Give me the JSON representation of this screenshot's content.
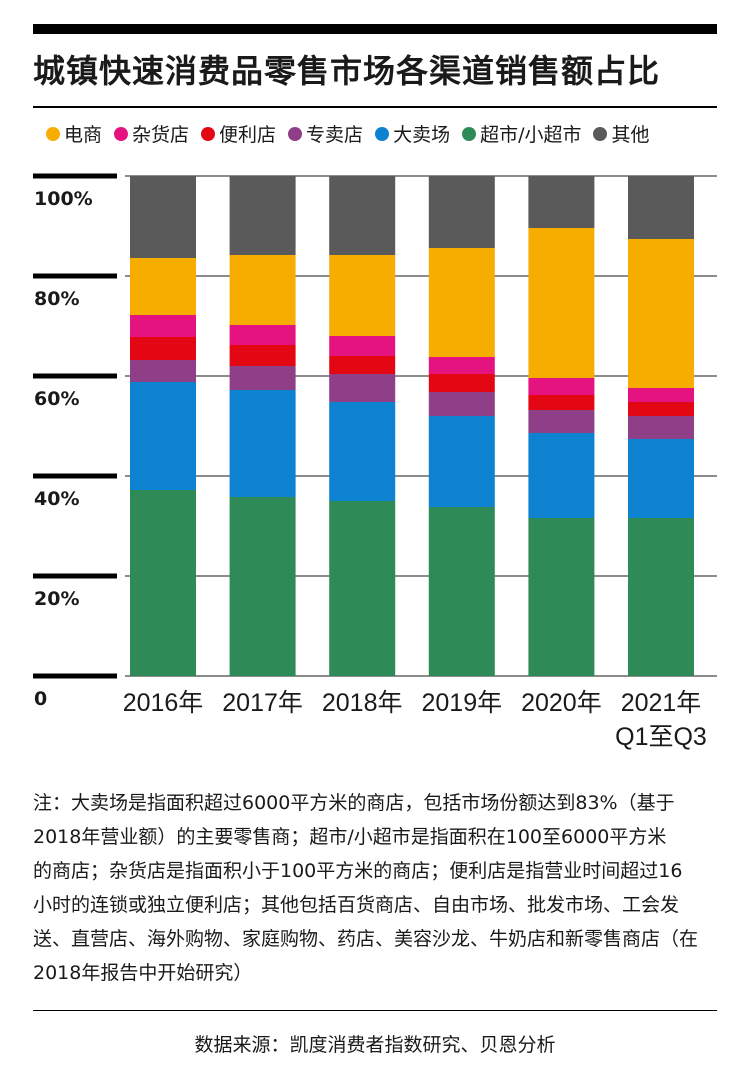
{
  "title": "城镇快速消费品零售市场各渠道销售额占比",
  "colors": {
    "电商": "#f6ad00",
    "杂货店": "#e5137f",
    "便利店": "#e30613",
    "专卖店": "#8e3f87",
    "大卖场": "#0d82d0",
    "超市/小超市": "#2e8b57",
    "其他": "#5a5a5a"
  },
  "legend": [
    "电商",
    "杂货店",
    "便利店",
    "专卖店",
    "大卖场",
    "超市/小超市",
    "其他"
  ],
  "chart_data": {
    "type": "bar",
    "stacked": true,
    "categories": [
      "2016年",
      "2017年",
      "2018年",
      "2019年",
      "2020年",
      "2021年\nQ1至Q3"
    ],
    "yticks": [
      "0",
      "20%",
      "40%",
      "60%",
      "80%",
      "100%"
    ],
    "ylim": [
      0,
      100
    ],
    "series": [
      {
        "name": "超市/小超市",
        "values": [
          37.2,
          35.8,
          35.0,
          33.8,
          31.6,
          31.6
        ]
      },
      {
        "name": "大卖场",
        "values": [
          21.6,
          21.4,
          19.8,
          18.2,
          17.0,
          15.8
        ]
      },
      {
        "name": "专卖店",
        "values": [
          4.4,
          4.8,
          5.6,
          4.8,
          4.6,
          4.6
        ]
      },
      {
        "name": "便利店",
        "values": [
          4.6,
          4.2,
          3.6,
          3.6,
          3.0,
          2.8
        ]
      },
      {
        "name": "杂货店",
        "values": [
          4.4,
          4.0,
          4.0,
          3.4,
          3.4,
          2.8
        ]
      },
      {
        "name": "电商",
        "values": [
          11.4,
          14.0,
          16.2,
          21.8,
          30.0,
          29.8
        ]
      },
      {
        "name": "其他",
        "values": [
          16.4,
          15.8,
          15.8,
          14.4,
          10.4,
          12.6
        ]
      }
    ]
  },
  "note_lines": [
    "注：大卖场是指面积超过6000平方米的商店，包括市场份额达到83%（基于",
    "2018年营业额）的主要零售商；超市/小超市是指面积在100至6000平方米",
    "的商店；杂货店是指面积小于100平方米的商店；便利店是指营业时间超过16",
    "小时的连锁或独立便利店；其他包括百货商店、自由市场、批发市场、工会发",
    "送、直营店、海外购物、家庭购物、药店、美容沙龙、牛奶店和新零售商店（在",
    "2018年报告中开始研究）"
  ],
  "source": "数据来源：凯度消费者指数研究、贝恩分析"
}
